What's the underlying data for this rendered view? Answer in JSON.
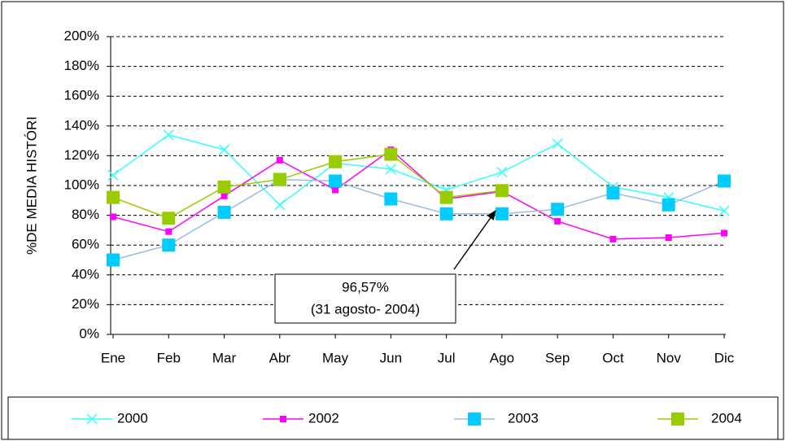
{
  "chart_data": {
    "type": "line",
    "y_label": "%DE MEDIA HISTÓRI",
    "categories": [
      "Ene",
      "Feb",
      "Mar",
      "Abr",
      "May",
      "Jun",
      "Jul",
      "Ago",
      "Sep",
      "Oct",
      "Nov",
      "Dic"
    ],
    "series": [
      {
        "name": "2000",
        "color": "#33ffff",
        "marker": "x",
        "values": [
          107,
          134,
          124,
          87,
          115,
          111,
          97,
          109,
          128,
          99,
          92,
          83
        ]
      },
      {
        "name": "2002",
        "color": "#ff00ff",
        "marker": "small-square",
        "values": [
          79,
          69,
          93,
          117,
          97,
          124,
          91,
          96,
          76,
          64,
          65,
          68
        ]
      },
      {
        "name": "2003",
        "color": "#99bbe8",
        "marker_color": "#00ccff",
        "marker": "square",
        "values": [
          50,
          60,
          82,
          104,
          103,
          91,
          81,
          81,
          84,
          95,
          87,
          103
        ]
      },
      {
        "name": "2004",
        "color": "#99cc00",
        "marker": "square",
        "values": [
          92,
          78,
          99,
          104,
          116,
          121,
          92,
          96.57,
          null,
          null,
          null,
          null
        ]
      }
    ],
    "ylim": [
      0,
      200
    ],
    "yticks": [
      {
        "value": 0,
        "label": "0%"
      },
      {
        "value": 20,
        "label": "20%"
      },
      {
        "value": 40,
        "label": "40%"
      },
      {
        "value": 60,
        "label": "60%"
      },
      {
        "value": 80,
        "label": "80%"
      },
      {
        "value": 100,
        "label": "100%"
      },
      {
        "value": 120,
        "label": "120%"
      },
      {
        "value": 140,
        "label": "140%"
      },
      {
        "value": 160,
        "label": "160%"
      },
      {
        "value": 180,
        "label": "180%"
      },
      {
        "value": 200,
        "label": "200%"
      }
    ],
    "grid": true,
    "legend": "bottom",
    "annotation": [
      "96,57%",
      "(31 agosto- 2004)"
    ]
  }
}
